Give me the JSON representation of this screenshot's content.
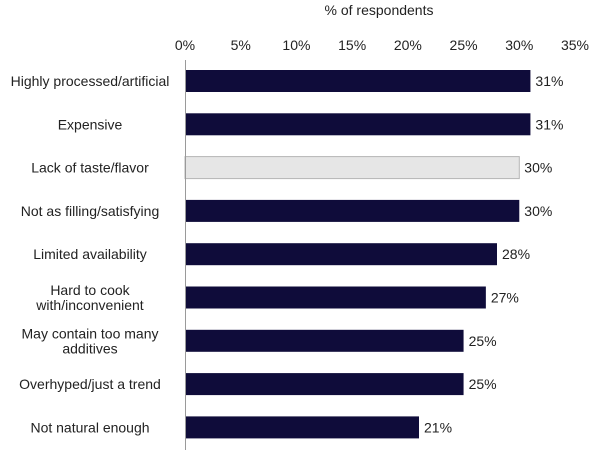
{
  "chart_data": {
    "type": "bar",
    "orientation": "horizontal",
    "axis_title": "% of respondents",
    "axis_position": "top",
    "xlim": [
      0,
      35
    ],
    "ticks": [
      "0%",
      "5%",
      "10%",
      "15%",
      "20%",
      "25%",
      "30%",
      "35%"
    ],
    "tick_values": [
      0,
      5,
      10,
      15,
      20,
      25,
      30,
      35
    ],
    "grid": false,
    "colors": {
      "default": "#0f0c3a",
      "highlight": "#e6e6e6",
      "highlight_border": "#b5b5b5"
    },
    "categories": [
      {
        "lines": [
          "Highly processed/artificial"
        ],
        "value": 31,
        "label": "31%",
        "highlight": false
      },
      {
        "lines": [
          "Expensive"
        ],
        "value": 31,
        "label": "31%",
        "highlight": false
      },
      {
        "lines": [
          "Lack of taste/flavor"
        ],
        "value": 30,
        "label": "30%",
        "highlight": true
      },
      {
        "lines": [
          "Not as filling/satisfying"
        ],
        "value": 30,
        "label": "30%",
        "highlight": false
      },
      {
        "lines": [
          "Limited availability"
        ],
        "value": 28,
        "label": "28%",
        "highlight": false
      },
      {
        "lines": [
          "Hard to cook",
          "with/inconvenient"
        ],
        "value": 27,
        "label": "27%",
        "highlight": false
      },
      {
        "lines": [
          "May contain too many",
          "additives"
        ],
        "value": 25,
        "label": "25%",
        "highlight": false
      },
      {
        "lines": [
          "Overhyped/just a trend"
        ],
        "value": 25,
        "label": "25%",
        "highlight": false
      },
      {
        "lines": [
          "Not natural enough"
        ],
        "value": 21,
        "label": "21%",
        "highlight": false
      }
    ]
  }
}
